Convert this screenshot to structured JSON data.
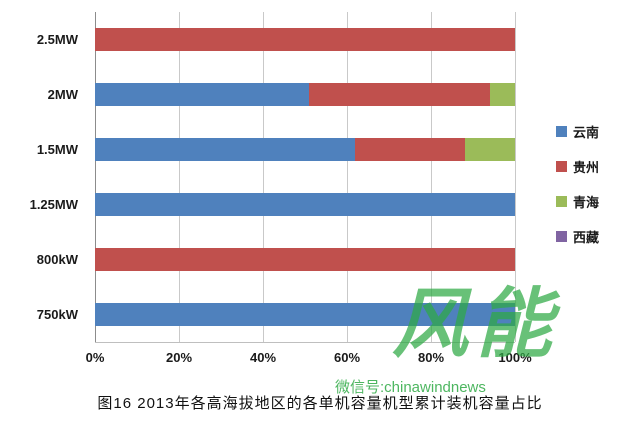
{
  "caption": "图16 2013年各高海拔地区的各单机容量机型累计装机容量占比",
  "watermark": {
    "logo": "风能",
    "wechat": "微信号:chinawindnews"
  },
  "colors": {
    "yunnan_blue": "#4f81bd",
    "guizhou_red": "#c0504d",
    "qinghai_green": "#9bbb59",
    "xizang_purple": "#8064a2",
    "watermark_green": "#2faa45"
  },
  "chart_data": {
    "type": "bar",
    "orientation": "horizontal",
    "stacked": true,
    "stacked_100_percent": true,
    "title": "",
    "xlabel": "",
    "ylabel": "",
    "xlim": [
      0,
      100
    ],
    "grid": true,
    "legend_position": "right",
    "categories": [
      "2.5MW",
      "2MW",
      "1.5MW",
      "1.25MW",
      "800kW",
      "750kW"
    ],
    "x_ticks": [
      "0%",
      "20%",
      "40%",
      "60%",
      "80%",
      "100%"
    ],
    "series": [
      {
        "name": "云南",
        "color": "#4f81bd",
        "values": [
          0,
          51,
          62,
          100,
          0,
          100
        ]
      },
      {
        "name": "贵州",
        "color": "#c0504d",
        "values": [
          100,
          43,
          26,
          0,
          100,
          0
        ]
      },
      {
        "name": "青海",
        "color": "#9bbb59",
        "values": [
          0,
          6,
          12,
          0,
          0,
          0
        ]
      },
      {
        "name": "西藏",
        "color": "#8064a2",
        "values": [
          0,
          0,
          0,
          0,
          0,
          0
        ]
      }
    ]
  }
}
